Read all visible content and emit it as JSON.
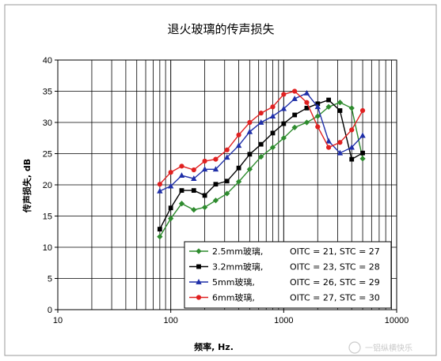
{
  "chart_data": {
    "type": "line",
    "title": "退火玻璃的传声损失",
    "xlabel": "频率, Hz.",
    "ylabel": "传声损失, dB",
    "x_scale": "log",
    "xlim": [
      10,
      10000
    ],
    "ylim": [
      0,
      40
    ],
    "x_ticks": [
      "10",
      "100",
      "1000",
      "10000"
    ],
    "y_ticks": [
      "0",
      "5",
      "10",
      "15",
      "20",
      "25",
      "30",
      "35",
      "40"
    ],
    "grid": true,
    "legend_position": "bottom-right",
    "x": [
      80,
      100,
      125,
      160,
      200,
      250,
      315,
      400,
      500,
      630,
      800,
      1000,
      1250,
      1600,
      2000,
      2500,
      3150,
      4000,
      5000
    ],
    "series": [
      {
        "name": "2.5mm玻璃,",
        "rating": "OITC = 21, STC = 27",
        "color": "#2e8b2e",
        "marker": "diamond",
        "values": [
          11.7,
          14.6,
          17.0,
          16.0,
          16.4,
          17.5,
          18.6,
          20.5,
          22.5,
          24.5,
          26.0,
          27.5,
          29.2,
          30.0,
          31.0,
          32.5,
          33.2,
          32.3,
          24.2
        ]
      },
      {
        "name": "3.2mm玻璃,",
        "rating": "OITC = 23, STC = 28",
        "color": "#000000",
        "marker": "square",
        "values": [
          12.9,
          16.3,
          19.1,
          19.1,
          18.3,
          20.1,
          20.6,
          22.7,
          24.9,
          26.5,
          28.3,
          29.8,
          31.2,
          32.3,
          33.0,
          33.6,
          31.9,
          24.1,
          25.1
        ]
      },
      {
        "name": "5mm玻璃,",
        "rating": "OITC = 26, STC = 29",
        "color": "#1f2fa8",
        "marker": "triangle",
        "values": [
          19.0,
          19.8,
          21.5,
          21.0,
          22.5,
          22.5,
          24.4,
          26.3,
          28.5,
          30.0,
          31.0,
          32.2,
          33.8,
          34.7,
          32.5,
          27.0,
          25.1,
          26.0,
          27.9
        ]
      },
      {
        "name": "6mm玻璃,",
        "rating": "OITC = 27, STC = 30",
        "color": "#e02020",
        "marker": "circle",
        "values": [
          20.1,
          22.0,
          23.0,
          22.4,
          23.8,
          24.1,
          25.6,
          28.0,
          30.0,
          31.5,
          32.5,
          34.5,
          35.0,
          33.2,
          29.3,
          26.0,
          26.8,
          28.8,
          31.9
        ]
      }
    ]
  },
  "watermark": {
    "text": "一铝纵横快乐"
  }
}
